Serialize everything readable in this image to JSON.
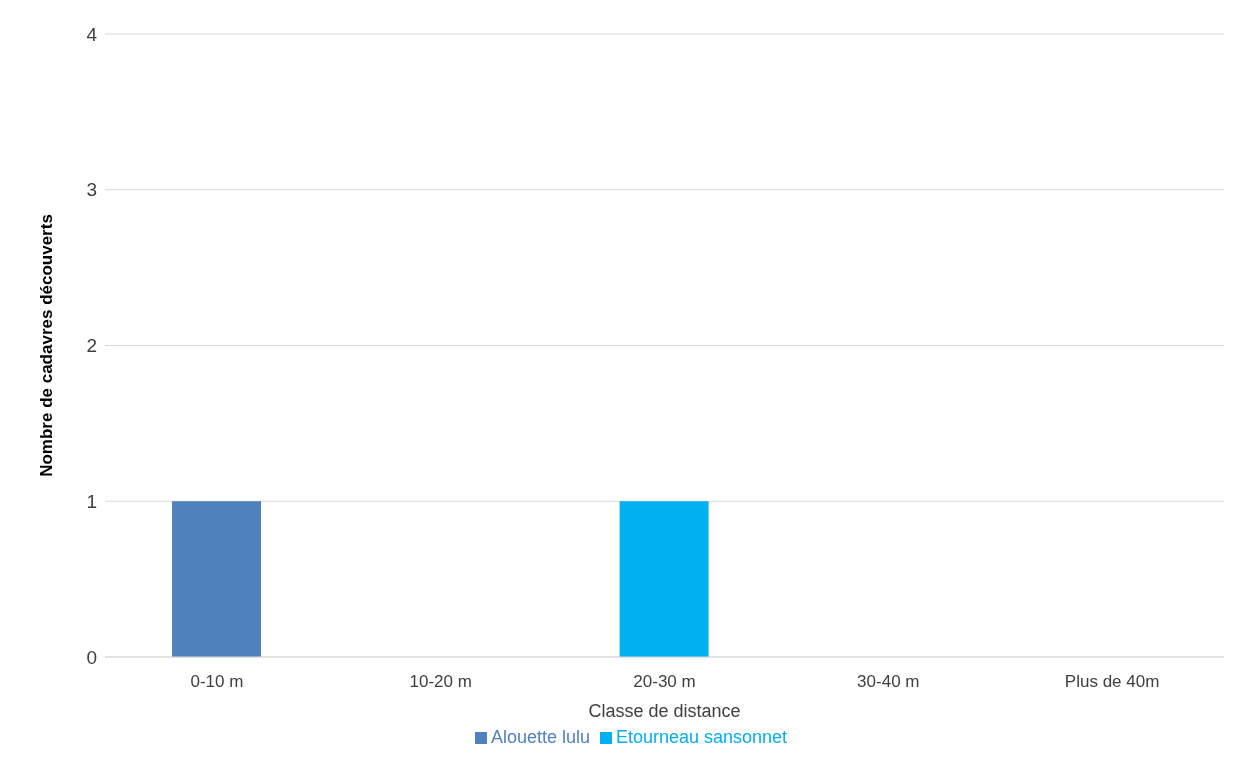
{
  "chart_data": {
    "type": "bar",
    "xlabel": "Classe de distance",
    "ylabel": "Nombre de cadavres découverts",
    "categories": [
      "0-10 m",
      "10-20 m",
      "20-30 m",
      "30-40 m",
      "Plus de 40m"
    ],
    "series": [
      {
        "name": "Alouette lulu",
        "color": "#4f81bd",
        "values": [
          1,
          0,
          0,
          0,
          0
        ]
      },
      {
        "name": "Etourneau sansonnet",
        "color": "#00b0f0",
        "values": [
          0,
          0,
          1,
          0,
          0
        ]
      }
    ],
    "stacked": true,
    "ylim": [
      0,
      4
    ],
    "yticks": [
      0,
      1,
      2,
      3,
      4
    ],
    "grid": "y",
    "legend": "bottom"
  }
}
